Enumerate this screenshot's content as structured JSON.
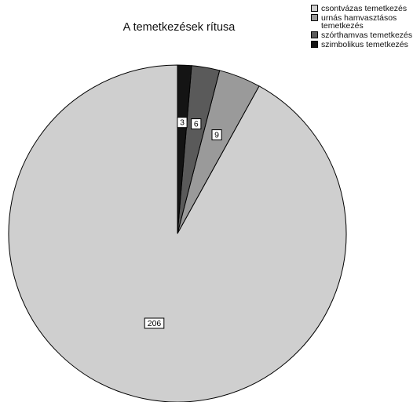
{
  "chart_data": {
    "type": "pie",
    "title": "A temetkezések rítusa",
    "categories": [
      "csontvázas temetkezés",
      "urnás hamvasztásos temetkezés",
      "szórthamvas temetkezés",
      "szimbolikus temetkezés"
    ],
    "values": [
      206,
      9,
      6,
      3
    ],
    "data_labels": [
      "206",
      "9",
      "6",
      "3"
    ],
    "colors": [
      "#cfcfcf",
      "#9a9a9a",
      "#5a5a5a",
      "#141414"
    ],
    "direction": "counterclockwise",
    "start_angle": "12 o'clock",
    "legend_position": "top-right",
    "legend": [
      {
        "label": "csontvázas temetkezés",
        "color": "#cfcfcf"
      },
      {
        "label": "urnás hamvasztásos temetkezés",
        "color": "#9a9a9a"
      },
      {
        "label": "szórthamvas temetkezés",
        "color": "#5a5a5a"
      },
      {
        "label": "szimbolikus temetkezés",
        "color": "#141414"
      }
    ]
  }
}
